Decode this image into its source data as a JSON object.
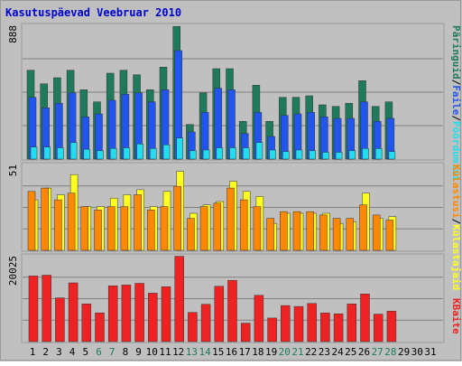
{
  "title": "Kasutuspäevad Veebruar 2010",
  "colors": {
    "background": "#C0C0C0",
    "frame": "#9A9A9A",
    "title": "#0000CC",
    "grid": "#808080",
    "pages": "#1E7A5A",
    "files": "#2255EE",
    "hits": "#22DDEE",
    "visits": "#FF8800",
    "visitors": "#FFFF22",
    "kbytes": "#EE2222",
    "day_weekday": "#000000",
    "day_weekend": "#1E7A5A",
    "day_outside": "#000000"
  },
  "legend": {
    "top": [
      {
        "key": "pages",
        "text": "Päringuid"
      },
      {
        "key": "sep",
        "text": "/"
      },
      {
        "key": "files",
        "text": "Faile"
      },
      {
        "key": "sep",
        "text": "/"
      },
      {
        "key": "hits",
        "text": "Pöördumisi"
      }
    ],
    "middle": [
      {
        "key": "visits",
        "text": "Külastusi"
      },
      {
        "key": "sep",
        "text": "/"
      },
      {
        "key": "visitors",
        "text": "Külastajaid"
      }
    ],
    "bottom": [
      {
        "key": "kbytes",
        "text": "KBaite"
      }
    ]
  },
  "chart_data": [
    {
      "type": "bar",
      "panel": "top",
      "ymax_label": "888",
      "ylim": [
        0,
        888
      ],
      "categories": [
        "1",
        "2",
        "3",
        "4",
        "5",
        "6",
        "7",
        "8",
        "9",
        "10",
        "11",
        "12",
        "13",
        "14",
        "15",
        "16",
        "17",
        "18",
        "19",
        "20",
        "21",
        "22",
        "23",
        "24",
        "25",
        "26",
        "27",
        "28"
      ],
      "series": [
        {
          "name": "Päringuid",
          "color_key": "pages",
          "values": [
            590,
            500,
            540,
            590,
            460,
            380,
            570,
            590,
            560,
            460,
            610,
            880,
            230,
            440,
            600,
            600,
            250,
            490,
            250,
            410,
            410,
            420,
            360,
            350,
            370,
            520,
            350,
            380
          ]
        },
        {
          "name": "Faile",
          "color_key": "files",
          "values": [
            410,
            340,
            370,
            440,
            280,
            300,
            390,
            430,
            440,
            380,
            460,
            720,
            180,
            310,
            470,
            460,
            170,
            310,
            150,
            290,
            300,
            310,
            280,
            270,
            270,
            380,
            250,
            270
          ]
        },
        {
          "name": "Pöördumisi",
          "color_key": "hits",
          "values": [
            80,
            80,
            75,
            110,
            65,
            55,
            70,
            75,
            100,
            70,
            95,
            140,
            55,
            60,
            75,
            75,
            75,
            110,
            60,
            50,
            60,
            55,
            45,
            45,
            55,
            70,
            70,
            50
          ]
        }
      ]
    },
    {
      "type": "bar",
      "panel": "middle",
      "ymax_label": "51",
      "ylim": [
        0,
        51
      ],
      "categories": [
        "1",
        "2",
        "3",
        "4",
        "5",
        "6",
        "7",
        "8",
        "9",
        "10",
        "11",
        "12",
        "13",
        "14",
        "15",
        "16",
        "17",
        "18",
        "19",
        "20",
        "21",
        "22",
        "23",
        "24",
        "25",
        "26",
        "27",
        "28"
      ],
      "series": [
        {
          "name": "Külastusi",
          "color_key": "visitors",
          "values": [
            30,
            37,
            33,
            45,
            26,
            26,
            31,
            33,
            36,
            26,
            35,
            47,
            22,
            27,
            29,
            41,
            35,
            32,
            16,
            22,
            22,
            22,
            22,
            16,
            17,
            34,
            19,
            20
          ]
        },
        {
          "name": "Külastajaid",
          "color_key": "visits",
          "values": [
            35,
            37,
            30,
            34,
            26,
            24,
            26,
            26,
            33,
            24,
            26,
            38,
            19,
            26,
            28,
            37,
            30,
            26,
            19,
            23,
            23,
            23,
            21,
            19,
            19,
            27,
            21,
            18
          ]
        }
      ]
    },
    {
      "type": "bar",
      "panel": "bottom",
      "ymax_label": "20025",
      "ylim": [
        0,
        20025
      ],
      "categories": [
        "1",
        "2",
        "3",
        "4",
        "5",
        "6",
        "7",
        "8",
        "9",
        "10",
        "11",
        "12",
        "13",
        "14",
        "15",
        "16",
        "17",
        "18",
        "19",
        "20",
        "21",
        "22",
        "23",
        "24",
        "25",
        "26",
        "27",
        "28"
      ],
      "series": [
        {
          "name": "KBaite",
          "color_key": "kbytes",
          "values": [
            15300,
            15500,
            10200,
            13700,
            8800,
            6700,
            13000,
            13200,
            13600,
            11300,
            12800,
            19900,
            6800,
            8700,
            12900,
            14300,
            4300,
            10800,
            5500,
            8400,
            8200,
            8900,
            6700,
            6500,
            8800,
            11100,
            6400,
            7100
          ]
        }
      ]
    }
  ],
  "days": [
    {
      "label": "1",
      "kind": "weekday"
    },
    {
      "label": "2",
      "kind": "weekday"
    },
    {
      "label": "3",
      "kind": "weekday"
    },
    {
      "label": "4",
      "kind": "weekday"
    },
    {
      "label": "5",
      "kind": "weekday"
    },
    {
      "label": "6",
      "kind": "weekend"
    },
    {
      "label": "7",
      "kind": "weekend"
    },
    {
      "label": "8",
      "kind": "weekday"
    },
    {
      "label": "9",
      "kind": "weekday"
    },
    {
      "label": "10",
      "kind": "weekday"
    },
    {
      "label": "11",
      "kind": "weekday"
    },
    {
      "label": "12",
      "kind": "weekday"
    },
    {
      "label": "13",
      "kind": "weekend"
    },
    {
      "label": "14",
      "kind": "weekend"
    },
    {
      "label": "15",
      "kind": "weekday"
    },
    {
      "label": "16",
      "kind": "weekday"
    },
    {
      "label": "17",
      "kind": "weekday"
    },
    {
      "label": "18",
      "kind": "weekday"
    },
    {
      "label": "19",
      "kind": "weekday"
    },
    {
      "label": "20",
      "kind": "weekend"
    },
    {
      "label": "21",
      "kind": "weekend"
    },
    {
      "label": "22",
      "kind": "weekday"
    },
    {
      "label": "23",
      "kind": "weekday"
    },
    {
      "label": "24",
      "kind": "weekday"
    },
    {
      "label": "25",
      "kind": "weekday"
    },
    {
      "label": "26",
      "kind": "weekday"
    },
    {
      "label": "27",
      "kind": "weekend"
    },
    {
      "label": "28",
      "kind": "weekend"
    },
    {
      "label": "29",
      "kind": "outside"
    },
    {
      "label": "30",
      "kind": "outside"
    },
    {
      "label": "31",
      "kind": "outside"
    }
  ]
}
